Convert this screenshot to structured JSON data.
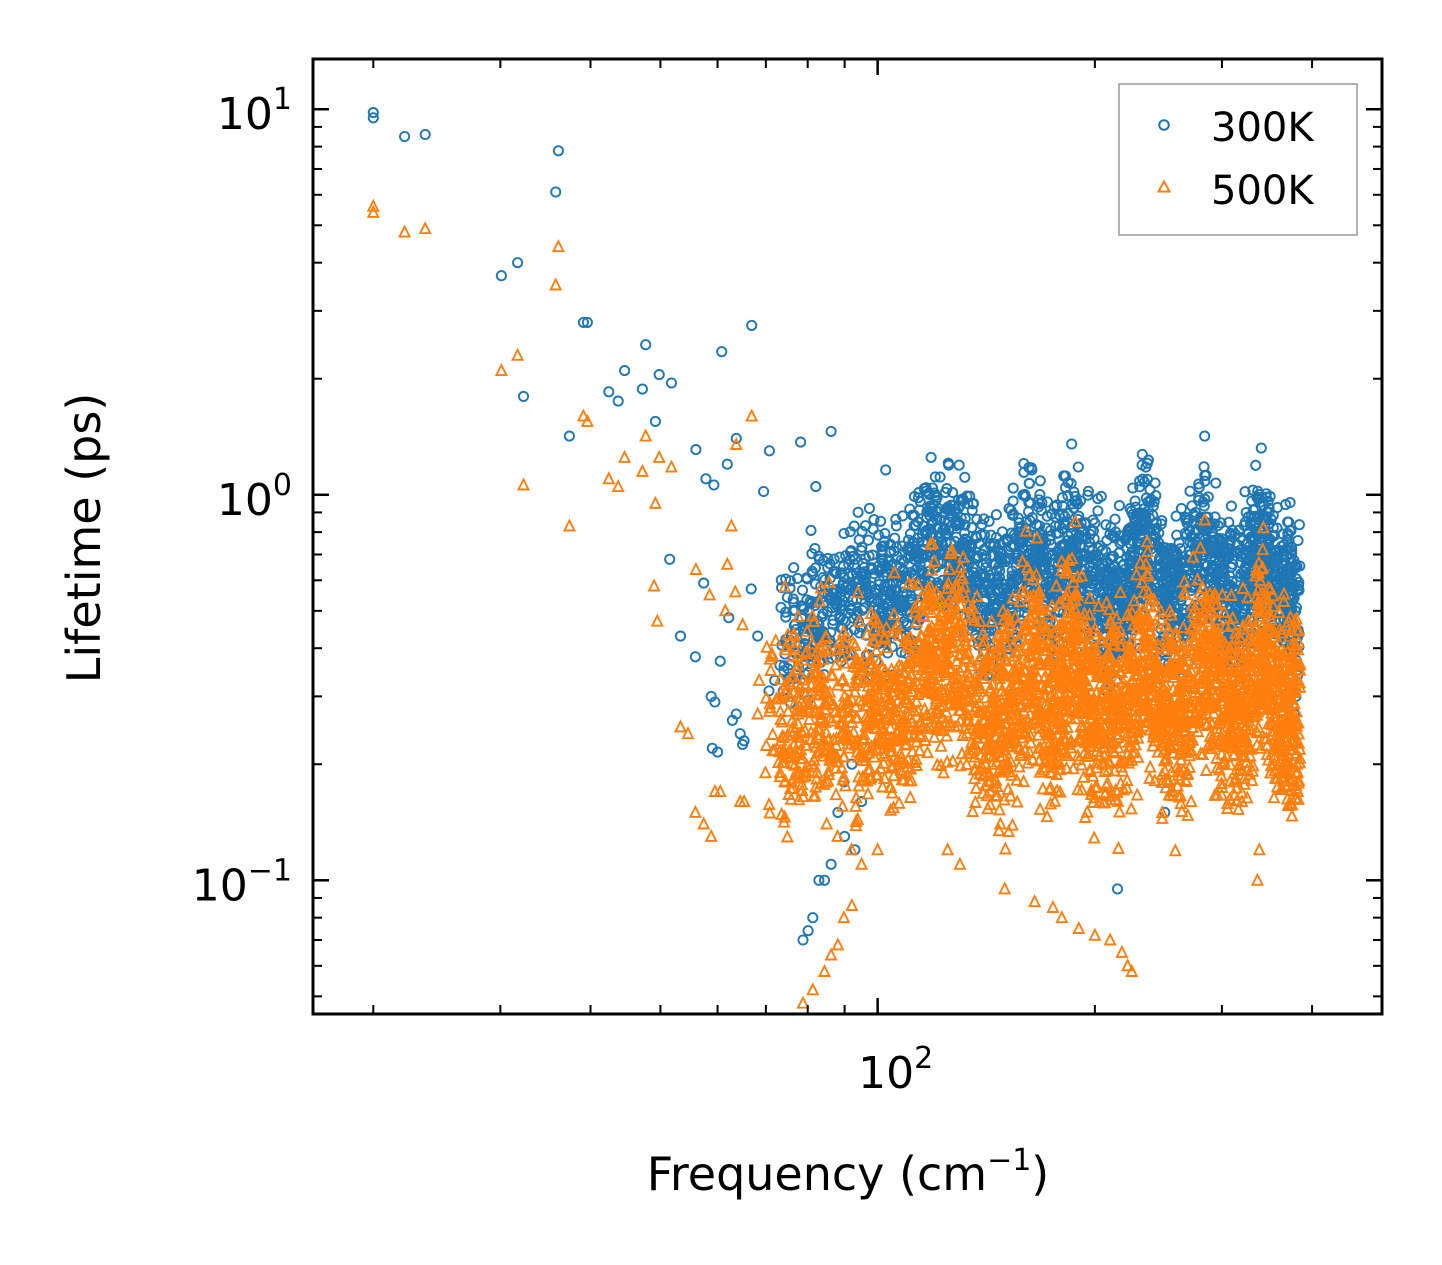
{
  "chart_data": {
    "type": "scatter",
    "title": "",
    "xlabel": "Frequency (cm",
    "xlabel_sup": "−1",
    "xlabel_close": ")",
    "ylabel": "Lifetime (ps)",
    "xscale": "log",
    "yscale": "log",
    "xlim": [
      16.5,
      500
    ],
    "ylim": [
      0.045,
      13.5
    ],
    "x_ticks": [
      {
        "base": "10",
        "exp": "2",
        "value": 100
      }
    ],
    "y_ticks": [
      {
        "base": "10",
        "exp": "1",
        "value": 10
      },
      {
        "base": "10",
        "exp": "0",
        "value": 1
      },
      {
        "base": "10",
        "exp": "−1",
        "value": 0.1
      }
    ],
    "legend_position": "top-right",
    "series": [
      {
        "name": "300K",
        "marker": "circle",
        "color": "#1f77b4",
        "points": [
          [
            20.0,
            9.8
          ],
          [
            20.0,
            9.5
          ],
          [
            22.1,
            8.5
          ],
          [
            23.6,
            8.6
          ],
          [
            30.1,
            3.7
          ],
          [
            31.7,
            4.0
          ],
          [
            32.3,
            1.8
          ],
          [
            35.8,
            6.1
          ],
          [
            36.1,
            7.8
          ],
          [
            37.4,
            1.42
          ],
          [
            39.1,
            2.8
          ],
          [
            39.6,
            2.8
          ],
          [
            42.4,
            1.85
          ],
          [
            43.7,
            1.75
          ],
          [
            44.6,
            2.1
          ],
          [
            47.2,
            1.88
          ],
          [
            47.7,
            2.45
          ],
          [
            49.2,
            1.55
          ],
          [
            49.8,
            2.05
          ],
          [
            51.8,
            1.95
          ],
          [
            56.0,
            1.31
          ],
          [
            57.8,
            1.1
          ],
          [
            59.3,
            1.06
          ],
          [
            60.8,
            2.35
          ],
          [
            61.9,
            1.2
          ],
          [
            63.7,
            1.4
          ],
          [
            66.9,
            2.75
          ],
          [
            69.5,
            1.02
          ],
          [
            70.8,
            1.3
          ],
          [
            78.2,
            1.37
          ],
          [
            82.1,
            1.05
          ],
          [
            86.2,
            1.46
          ],
          [
            102.6,
            1.16
          ],
          [
            118.6,
            1.25
          ],
          [
            163.6,
            1.16
          ],
          [
            185.4,
            1.07
          ],
          [
            235.4,
            1.18
          ],
          [
            284.0,
            1.42
          ],
          [
            51.5,
            0.68
          ],
          [
            53.3,
            0.43
          ],
          [
            55.9,
            0.38
          ],
          [
            57.4,
            0.59
          ],
          [
            58.8,
            0.3
          ],
          [
            59.5,
            0.29
          ],
          [
            60.5,
            0.37
          ],
          [
            62.2,
            0.48
          ],
          [
            62.9,
            0.26
          ],
          [
            63.7,
            0.27
          ],
          [
            64.5,
            0.24
          ],
          [
            65.3,
            0.23
          ],
          [
            66.8,
            0.57
          ],
          [
            68.2,
            0.43
          ],
          [
            70.7,
            0.31
          ],
          [
            74.2,
            0.36
          ],
          [
            78.8,
            0.07
          ],
          [
            80.1,
            0.074
          ],
          [
            81.3,
            0.08
          ],
          [
            82.9,
            0.1
          ],
          [
            84.4,
            0.1
          ],
          [
            86.2,
            0.11
          ],
          [
            88.1,
            0.15
          ],
          [
            89.8,
            0.18
          ],
          [
            92.1,
            0.2
          ],
          [
            59.0,
            0.22
          ],
          [
            60.0,
            0.215
          ],
          [
            65.0,
            0.225
          ],
          [
            72.0,
            0.33
          ],
          [
            74.0,
            0.31
          ],
          [
            90.0,
            0.13
          ],
          [
            93.0,
            0.12
          ],
          [
            95.0,
            0.16
          ],
          [
            215.0,
            0.095
          ],
          [
            250.0,
            0.15
          ],
          [
            340.0,
            0.55
          ],
          [
            345.0,
            0.62
          ],
          [
            350.0,
            0.5
          ],
          [
            355.0,
            0.45
          ],
          [
            360.0,
            0.38
          ],
          [
            365.0,
            0.32
          ],
          [
            370.0,
            0.29
          ],
          [
            378.0,
            0.27
          ],
          [
            380.0,
            0.3
          ],
          [
            382.0,
            0.34
          ]
        ],
        "cloud": {
          "x_range": [
            73,
            385
          ],
          "y_range": [
            0.22,
            0.95
          ]
        }
      },
      {
        "name": "500K",
        "marker": "triangle",
        "color": "#ff7f0e",
        "points": [
          [
            20.0,
            5.6
          ],
          [
            20.0,
            5.4
          ],
          [
            22.1,
            4.8
          ],
          [
            23.6,
            4.9
          ],
          [
            30.1,
            2.1
          ],
          [
            31.7,
            2.3
          ],
          [
            32.3,
            1.06
          ],
          [
            35.8,
            3.5
          ],
          [
            36.1,
            4.4
          ],
          [
            37.4,
            0.83
          ],
          [
            39.1,
            1.6
          ],
          [
            39.6,
            1.55
          ],
          [
            42.4,
            1.1
          ],
          [
            43.7,
            1.05
          ],
          [
            44.6,
            1.25
          ],
          [
            47.2,
            1.15
          ],
          [
            47.7,
            1.42
          ],
          [
            49.2,
            0.95
          ],
          [
            49.8,
            1.25
          ],
          [
            51.8,
            1.18
          ],
          [
            53.3,
            0.25
          ],
          [
            54.6,
            0.24
          ],
          [
            55.9,
            0.15
          ],
          [
            57.4,
            0.14
          ],
          [
            58.8,
            0.13
          ],
          [
            59.5,
            0.17
          ],
          [
            60.5,
            0.17
          ],
          [
            61.9,
            0.66
          ],
          [
            62.7,
            0.83
          ],
          [
            63.7,
            1.35
          ],
          [
            64.5,
            0.16
          ],
          [
            65.3,
            0.16
          ],
          [
            66.9,
            1.6
          ],
          [
            68.2,
            0.27
          ],
          [
            69.9,
            0.19
          ],
          [
            78.8,
            0.048
          ],
          [
            81.3,
            0.052
          ],
          [
            84.4,
            0.058
          ],
          [
            86.2,
            0.064
          ],
          [
            88.1,
            0.068
          ],
          [
            89.8,
            0.08
          ],
          [
            92.1,
            0.086
          ],
          [
            49.5,
            0.47
          ],
          [
            49.0,
            0.58
          ],
          [
            56.0,
            0.64
          ],
          [
            58.5,
            0.55
          ],
          [
            61.5,
            0.5
          ],
          [
            63.5,
            0.56
          ],
          [
            65.0,
            0.46
          ],
          [
            68.5,
            0.33
          ],
          [
            71.0,
            0.28
          ],
          [
            73.5,
            0.23
          ],
          [
            76.0,
            0.18
          ],
          [
            78.0,
            0.19
          ],
          [
            81.0,
            0.2
          ],
          [
            85.0,
            0.14
          ],
          [
            88.0,
            0.13
          ],
          [
            92.0,
            0.12
          ],
          [
            95.0,
            0.11
          ],
          [
            100.0,
            0.12
          ],
          [
            225.0,
            0.058
          ],
          [
            222.0,
            0.06
          ],
          [
            218.0,
            0.065
          ],
          [
            210.0,
            0.07
          ],
          [
            200.0,
            0.072
          ],
          [
            190.0,
            0.075
          ],
          [
            180.0,
            0.08
          ],
          [
            175.0,
            0.085
          ],
          [
            165.0,
            0.088
          ],
          [
            150.0,
            0.095
          ],
          [
            130.0,
            0.11
          ],
          [
            125.0,
            0.12
          ],
          [
            336.0,
            0.1
          ],
          [
            338.0,
            0.12
          ],
          [
            272.0,
            0.16
          ],
          [
            284.0,
            0.86
          ],
          [
            235.4,
            0.66
          ],
          [
            200.0,
            0.45
          ],
          [
            160.0,
            0.56
          ],
          [
            370.0,
            0.2
          ],
          [
            380.0,
            0.19
          ],
          [
            382.0,
            0.17
          ],
          [
            360.0,
            0.22
          ]
        ],
        "cloud": {
          "x_range": [
            70,
            385
          ],
          "y_range": [
            0.09,
            0.55
          ]
        }
      }
    ]
  }
}
